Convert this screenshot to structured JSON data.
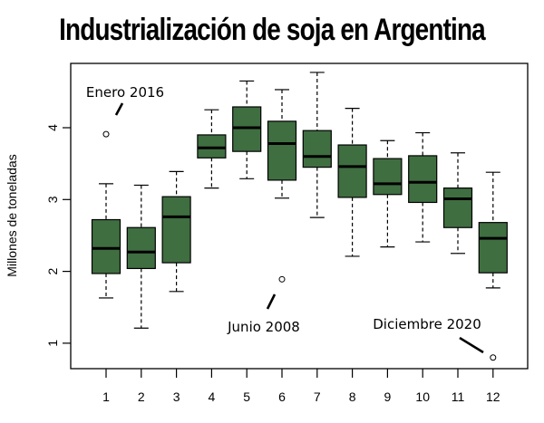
{
  "chart_data": {
    "type": "boxplot",
    "title": "Industrialización de soja en Argentina",
    "xlabel": "",
    "ylabel": "Millones de toneladas",
    "categories": [
      "1",
      "2",
      "3",
      "4",
      "5",
      "6",
      "7",
      "8",
      "9",
      "10",
      "11",
      "12"
    ],
    "yticks": [
      1,
      2,
      3,
      4
    ],
    "ytick_labels": [
      "1",
      "2",
      "3",
      "4"
    ],
    "ylim": [
      0.66,
      4.9
    ],
    "xlim": [
      0.0,
      13.0
    ],
    "grid": false,
    "box_color": "#3f6e41",
    "series": [
      {
        "name": "1",
        "whisker_low": 1.63,
        "q1": 1.97,
        "median": 2.32,
        "q3": 2.72,
        "whisker_high": 3.22,
        "outliers": [
          3.91
        ]
      },
      {
        "name": "2",
        "whisker_low": 1.21,
        "q1": 2.04,
        "median": 2.27,
        "q3": 2.61,
        "whisker_high": 3.2,
        "outliers": []
      },
      {
        "name": "3",
        "whisker_low": 1.72,
        "q1": 2.12,
        "median": 2.76,
        "q3": 3.04,
        "whisker_high": 3.39,
        "outliers": []
      },
      {
        "name": "4",
        "whisker_low": 3.16,
        "q1": 3.58,
        "median": 3.72,
        "q3": 3.9,
        "whisker_high": 4.25,
        "outliers": []
      },
      {
        "name": "5",
        "whisker_low": 3.29,
        "q1": 3.67,
        "median": 4.0,
        "q3": 4.29,
        "whisker_high": 4.65,
        "outliers": []
      },
      {
        "name": "6",
        "whisker_low": 3.02,
        "q1": 3.27,
        "median": 3.78,
        "q3": 4.09,
        "whisker_high": 4.53,
        "outliers": [
          1.89
        ]
      },
      {
        "name": "7",
        "whisker_low": 2.75,
        "q1": 3.45,
        "median": 3.6,
        "q3": 3.96,
        "whisker_high": 4.77,
        "outliers": []
      },
      {
        "name": "8",
        "whisker_low": 2.21,
        "q1": 3.03,
        "median": 3.46,
        "q3": 3.76,
        "whisker_high": 4.27,
        "outliers": []
      },
      {
        "name": "9",
        "whisker_low": 2.34,
        "q1": 3.07,
        "median": 3.22,
        "q3": 3.57,
        "whisker_high": 3.82,
        "outliers": []
      },
      {
        "name": "10",
        "whisker_low": 2.41,
        "q1": 2.96,
        "median": 3.24,
        "q3": 3.61,
        "whisker_high": 3.93,
        "outliers": []
      },
      {
        "name": "11",
        "whisker_low": 2.25,
        "q1": 2.61,
        "median": 3.01,
        "q3": 3.16,
        "whisker_high": 3.65,
        "outliers": []
      },
      {
        "name": "12",
        "whisker_low": 1.77,
        "q1": 1.98,
        "median": 2.46,
        "q3": 2.68,
        "whisker_high": 3.38,
        "outliers": [
          0.8
        ]
      }
    ],
    "annotations": [
      {
        "text": "Enero 2016",
        "target_category": "1",
        "target_value": 3.91
      },
      {
        "text": "Junio 2008",
        "target_category": "6",
        "target_value": 1.89
      },
      {
        "text": "Diciembre 2020",
        "target_category": "12",
        "target_value": 0.8
      }
    ]
  }
}
